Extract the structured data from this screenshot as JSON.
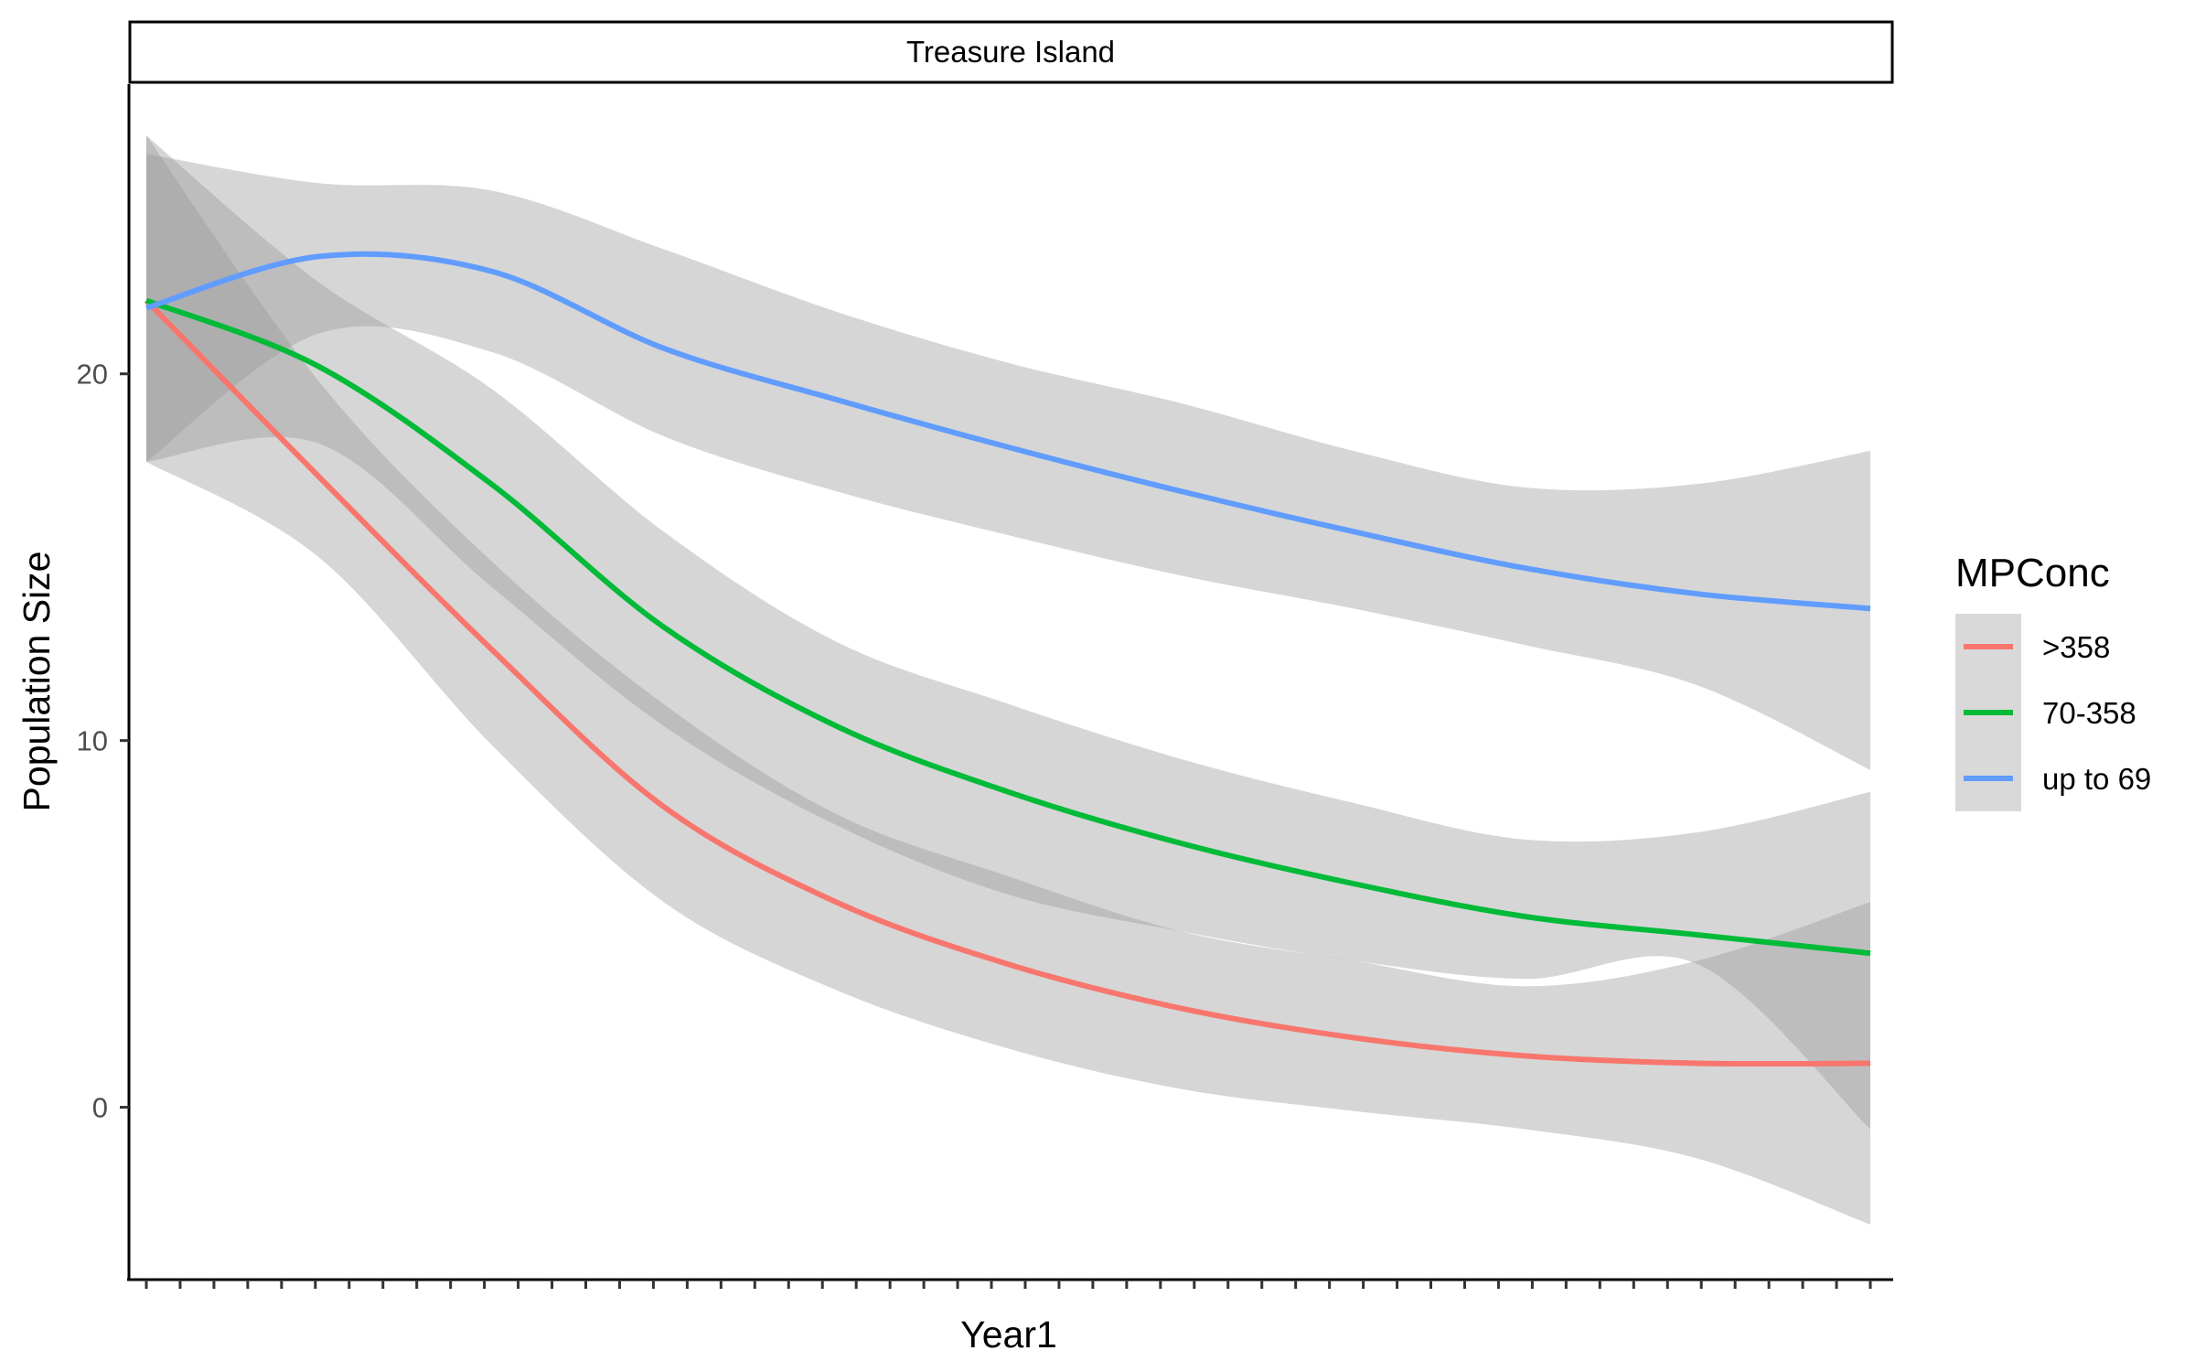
{
  "chart_data": {
    "type": "line",
    "facet_label": "Treasure Island",
    "xlabel": "Year1",
    "ylabel": "Population Size",
    "x_tick_count": 52,
    "x_tick_labels_shown": false,
    "ylim": [
      -4.7,
      27.9
    ],
    "yticks": [
      0,
      10,
      20
    ],
    "legend": {
      "title": "MPConc",
      "position": "right",
      "items": [
        ">358",
        "70-358",
        "up to 69"
      ]
    },
    "grid": false,
    "x": [
      0,
      0.1,
      0.2,
      0.3,
      0.4,
      0.5,
      0.6,
      0.7,
      0.8,
      0.9,
      1.0
    ],
    "series": [
      {
        "name": ">358",
        "color": "#F8766D",
        "values": [
          22.0,
          17.2,
          12.5,
          8.2,
          5.6,
          3.9,
          2.7,
          1.9,
          1.4,
          1.2,
          1.2
        ],
        "lower": [
          17.6,
          15.0,
          9.9,
          5.6,
          3.2,
          1.6,
          0.5,
          -0.1,
          -0.6,
          -1.4,
          -3.2
        ],
        "upper": [
          26.5,
          19.8,
          14.9,
          11.0,
          8.0,
          6.3,
          4.8,
          4.0,
          3.3,
          4.0,
          5.6
        ]
      },
      {
        "name": "70-358",
        "color": "#00BA38",
        "values": [
          22.0,
          20.2,
          17.0,
          13.1,
          10.4,
          8.6,
          7.2,
          6.1,
          5.2,
          4.7,
          4.2
        ],
        "lower": [
          17.6,
          18.1,
          14.2,
          10.4,
          7.7,
          5.8,
          4.8,
          4.0,
          3.5,
          3.9,
          -0.6
        ],
        "upper": [
          26.5,
          22.5,
          19.6,
          15.7,
          12.7,
          11.0,
          9.5,
          8.3,
          7.3,
          7.5,
          8.6
        ]
      },
      {
        "name": "up to 69",
        "color": "#619CFF",
        "values": [
          21.8,
          23.2,
          22.8,
          20.7,
          19.3,
          18.0,
          16.8,
          15.7,
          14.7,
          14.0,
          13.6
        ],
        "lower": [
          17.6,
          21.1,
          20.6,
          18.3,
          16.8,
          15.6,
          14.5,
          13.6,
          12.6,
          11.5,
          9.2
        ],
        "upper": [
          26.0,
          25.2,
          25.0,
          23.4,
          21.7,
          20.3,
          19.2,
          17.9,
          16.9,
          17.0,
          17.9
        ]
      }
    ]
  }
}
